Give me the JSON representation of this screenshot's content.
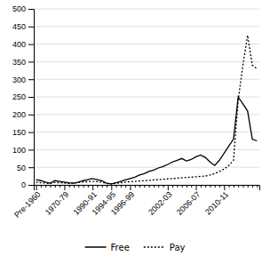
{
  "chart_data": {
    "type": "line",
    "categories": [
      "Pre-1960",
      null,
      null,
      null,
      null,
      null,
      "1970-79",
      null,
      null,
      null,
      null,
      null,
      "1990-91",
      null,
      null,
      null,
      "1994-95",
      null,
      null,
      null,
      "1996-99",
      null,
      null,
      null,
      null,
      null,
      null,
      null,
      "2002-03",
      null,
      null,
      null,
      null,
      null,
      "2006-07",
      null,
      null,
      null,
      null,
      null,
      "2010-11",
      null,
      null,
      null,
      null,
      null,
      null,
      null
    ],
    "series": [
      {
        "name": "Free",
        "color": "#000000",
        "line_style": "solid",
        "values": [
          15,
          12,
          8,
          5,
          12,
          10,
          8,
          6,
          5,
          8,
          12,
          15,
          18,
          15,
          12,
          5,
          3,
          6,
          10,
          14,
          18,
          22,
          28,
          32,
          38,
          42,
          48,
          52,
          58,
          65,
          70,
          75,
          68,
          72,
          80,
          85,
          78,
          65,
          55,
          70,
          90,
          110,
          130,
          250,
          230,
          210,
          130,
          125
        ]
      },
      {
        "name": "Pay",
        "color": "#000000",
        "line_style": "dotted",
        "values": [
          8,
          6,
          5,
          4,
          7,
          6,
          5,
          4,
          5,
          7,
          8,
          9,
          10,
          9,
          8,
          4,
          3,
          4,
          6,
          8,
          9,
          10,
          11,
          12,
          13,
          14,
          15,
          16,
          17,
          18,
          19,
          20,
          21,
          22,
          23,
          24,
          25,
          28,
          32,
          38,
          45,
          55,
          70,
          240,
          340,
          425,
          340,
          330
        ]
      }
    ],
    "ylim": [
      0,
      500
    ],
    "yticks": [
      0,
      50,
      100,
      150,
      200,
      250,
      300,
      350,
      400,
      450,
      500
    ],
    "grid": true,
    "legend": "bottom"
  }
}
